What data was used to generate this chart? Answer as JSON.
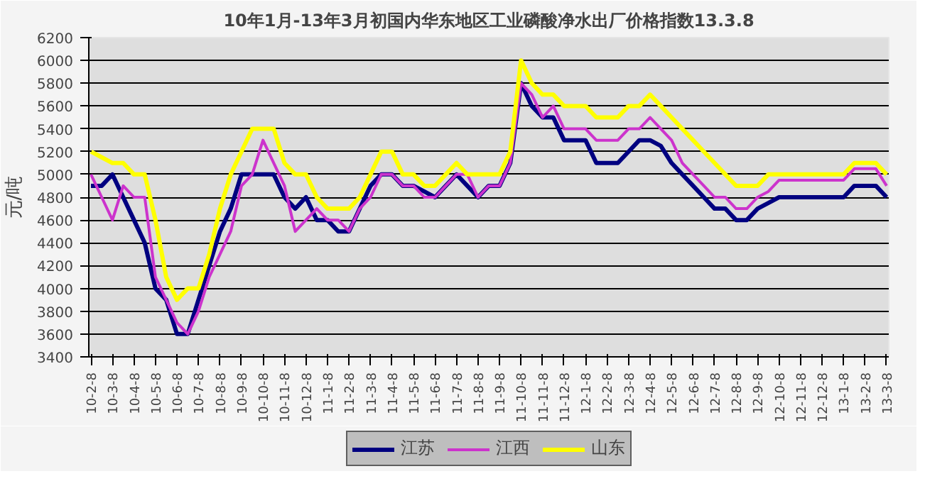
{
  "chart_data": {
    "type": "line",
    "title": "10年1月-13年3月初国内华东地区工业磷酸净水出厂价格指数13.3.8",
    "ylabel": "元/吨",
    "categories": [
      "10-2-8",
      null,
      "10-3-8",
      null,
      "10-4-8",
      null,
      "10-5-8",
      null,
      "10-6-8",
      null,
      "10-7-8",
      null,
      "10-8-8",
      null,
      "10-9-8",
      null,
      "10-10-8",
      null,
      "10-11-8",
      null,
      "10-12-8",
      null,
      "11-1-8",
      null,
      "11-2-8",
      null,
      "11-3-8",
      null,
      "11-4-8",
      null,
      "11-5-8",
      null,
      "11-6-8",
      null,
      "11-7-8",
      null,
      "11-8-8",
      null,
      "11-9-8",
      null,
      "11-10-8",
      null,
      "11-11-8",
      null,
      "11-12-8",
      null,
      "12-1-8",
      null,
      "12-2-8",
      null,
      "12-3-8",
      null,
      "12-4-8",
      null,
      "12-5-8",
      null,
      "12-6-8",
      null,
      "12-7-8",
      null,
      "12-8-8",
      null,
      "12-9-8",
      null,
      "12-10-8",
      null,
      "12-11-8",
      null,
      "12-12-8",
      null,
      "13-1-8",
      null,
      "13-2-8",
      null,
      "13-3-8"
    ],
    "series": [
      {
        "name": "江苏",
        "color": "#000080",
        "values": [
          4900,
          4900,
          5000,
          4800,
          4600,
          4400,
          4000,
          3900,
          3600,
          3600,
          3900,
          4200,
          4500,
          4700,
          5000,
          5000,
          5000,
          5000,
          4800,
          4700,
          4800,
          4600,
          4600,
          4500,
          4500,
          4700,
          4900,
          5000,
          5000,
          4900,
          4900,
          4850,
          4800,
          4900,
          5000,
          4900,
          4800,
          4900,
          4900,
          5100,
          5800,
          5600,
          5500,
          5500,
          5300,
          5300,
          5300,
          5100,
          5100,
          5100,
          5200,
          5300,
          5300,
          5250,
          5100,
          5000,
          4900,
          4800,
          4700,
          4700,
          4600,
          4600,
          4700,
          4750,
          4800,
          4800,
          4800,
          4800,
          4800,
          4800,
          4800,
          4900,
          4900,
          4900,
          4800
        ]
      },
      {
        "name": "江西",
        "color": "#cc33cc",
        "values": [
          5000,
          4800,
          4600,
          4900,
          4800,
          4800,
          4100,
          3900,
          3700,
          3600,
          3800,
          4100,
          4300,
          4500,
          4900,
          5000,
          5300,
          5100,
          4900,
          4500,
          4600,
          4700,
          4600,
          4600,
          4500,
          4700,
          4800,
          5000,
          5000,
          4900,
          4900,
          4800,
          4800,
          4900,
          5000,
          5000,
          4800,
          4900,
          4900,
          5100,
          5800,
          5700,
          5500,
          5600,
          5400,
          5400,
          5400,
          5300,
          5300,
          5300,
          5400,
          5400,
          5500,
          5400,
          5300,
          5100,
          5000,
          4900,
          4800,
          4800,
          4700,
          4700,
          4800,
          4850,
          4950,
          4950,
          4950,
          4950,
          4950,
          4950,
          4950,
          5050,
          5050,
          5050,
          4900
        ]
      },
      {
        "name": "山东",
        "color": "#ffff00",
        "values": [
          5200,
          5150,
          5100,
          5100,
          5000,
          5000,
          4600,
          4100,
          3900,
          4000,
          4000,
          4300,
          4700,
          5000,
          5200,
          5400,
          5400,
          5400,
          5100,
          5000,
          5000,
          4800,
          4700,
          4700,
          4700,
          4800,
          5000,
          5200,
          5200,
          5000,
          5000,
          4900,
          4900,
          5000,
          5100,
          5000,
          5000,
          5000,
          5000,
          5200,
          6000,
          5800,
          5700,
          5700,
          5600,
          5600,
          5600,
          5500,
          5500,
          5500,
          5600,
          5600,
          5700,
          5600,
          5500,
          5400,
          5300,
          5200,
          5100,
          5000,
          4900,
          4900,
          4900,
          5000,
          5000,
          5000,
          5000,
          5000,
          5000,
          5000,
          5000,
          5100,
          5100,
          5100,
          5000
        ]
      }
    ],
    "ylim": [
      3400,
      6200
    ],
    "yticks": [
      3400,
      3600,
      3800,
      4000,
      4200,
      4400,
      4600,
      4800,
      5000,
      5200,
      5400,
      5600,
      5800,
      6000,
      6200
    ],
    "grid": "y",
    "legend": "bottom",
    "marker": "none",
    "line_style": "solid"
  }
}
